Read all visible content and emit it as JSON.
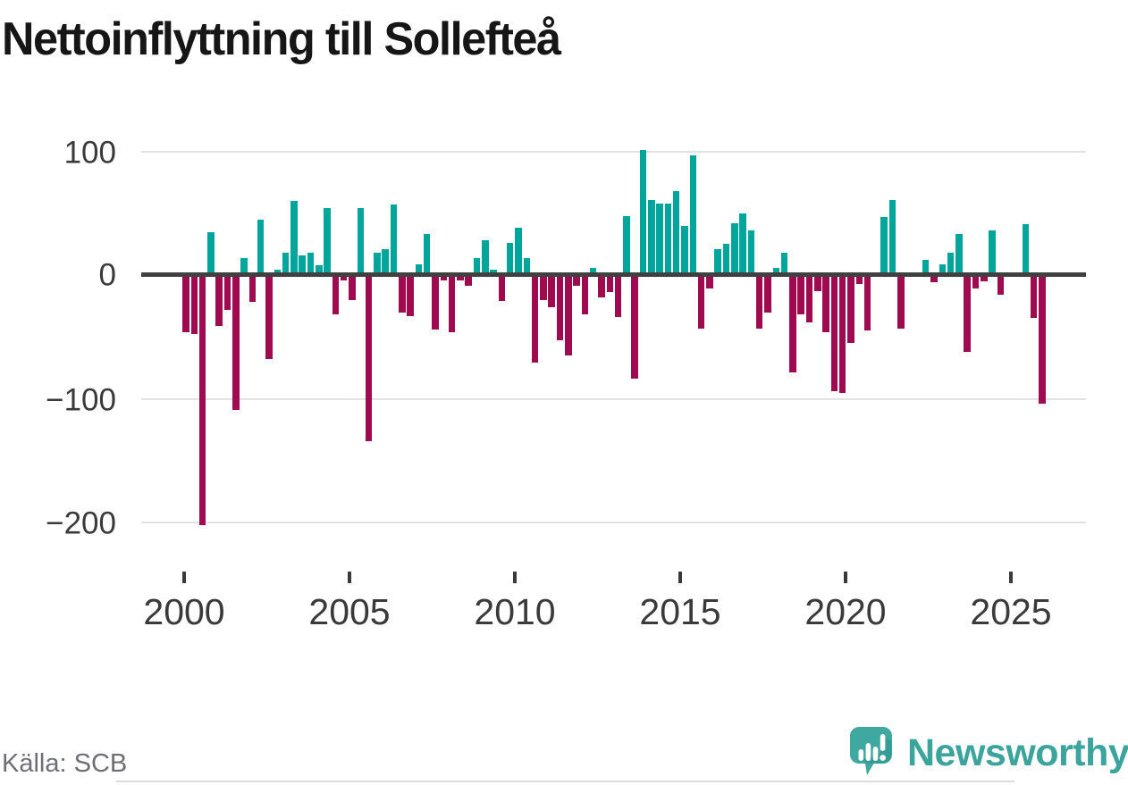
{
  "title": "Nettoinflyttning till Sollefteå",
  "source_label": "Källa: SCB",
  "brand": {
    "name": "Newsworthy",
    "icon": "speech-bubble-bar-chart-exclamation"
  },
  "colors": {
    "positive_bar": "#00a69c",
    "negative_bar": "#a00a50",
    "zero_axis": "#404040",
    "gridline": "#e2e2e2",
    "tick_label": "#3a3a3a",
    "title_text": "#161616",
    "source_text": "#6e6f75",
    "brand_teal": "#3ba49c",
    "brand_icon_teal": "#3fa8a0"
  },
  "y_axis": {
    "tick_values": [
      100,
      0,
      -100,
      -200
    ],
    "tick_labels": [
      "100",
      "0",
      "−100",
      "−200"
    ]
  },
  "x_axis": {
    "tick_labels": [
      "2000",
      "2005",
      "2010",
      "2015",
      "2020",
      "2025"
    ]
  },
  "chart_data": {
    "type": "bar",
    "title": "Nettoinflyttning till Sollefteå",
    "xlabel": "",
    "ylabel": "",
    "frequency": "quarterly",
    "start": "2000-Q1",
    "end": "2025-Q4",
    "ylim": [
      -220,
      115
    ],
    "grid": "horizontal",
    "legend": "none",
    "positive_color": "#00a69c",
    "negative_color": "#a00a50",
    "values_by_year": {
      "2000": [
        -46,
        -48,
        -202,
        35
      ],
      "2001": [
        -41,
        -28,
        -109,
        14
      ],
      "2002": [
        -22,
        45,
        -68,
        4
      ],
      "2003": [
        18,
        60,
        16,
        18
      ],
      "2004": [
        8,
        54,
        -32,
        -4
      ],
      "2005": [
        -20,
        54,
        -134,
        18
      ],
      "2006": [
        21,
        57,
        -30,
        -33
      ],
      "2007": [
        9,
        33,
        -44,
        -4
      ],
      "2008": [
        -46,
        -4,
        -9,
        14
      ],
      "2009": [
        28,
        4,
        -21,
        26
      ],
      "2010": [
        38,
        14,
        -71,
        -20
      ],
      "2011": [
        -26,
        -53,
        -65,
        -9
      ],
      "2012": [
        -32,
        6,
        -18,
        -14
      ],
      "2013": [
        -34,
        48,
        -84,
        101
      ],
      "2014": [
        61,
        58,
        58,
        68
      ],
      "2015": [
        40,
        97,
        -43,
        -11
      ],
      "2016": [
        21,
        25,
        42,
        50
      ],
      "2017": [
        36,
        -43,
        -30,
        6
      ],
      "2018": [
        18,
        -79,
        -32,
        -38
      ],
      "2019": [
        -13,
        -46,
        -94,
        -95
      ],
      "2020": [
        -55,
        -7,
        -45,
        0
      ],
      "2021": [
        47,
        61,
        -43,
        0
      ],
      "2022": [
        2,
        12,
        -6,
        9
      ],
      "2023": [
        18,
        33,
        -62,
        -11
      ],
      "2024": [
        -5,
        36,
        -16,
        0
      ],
      "2025": [
        0,
        41,
        -35,
        -104
      ]
    }
  }
}
